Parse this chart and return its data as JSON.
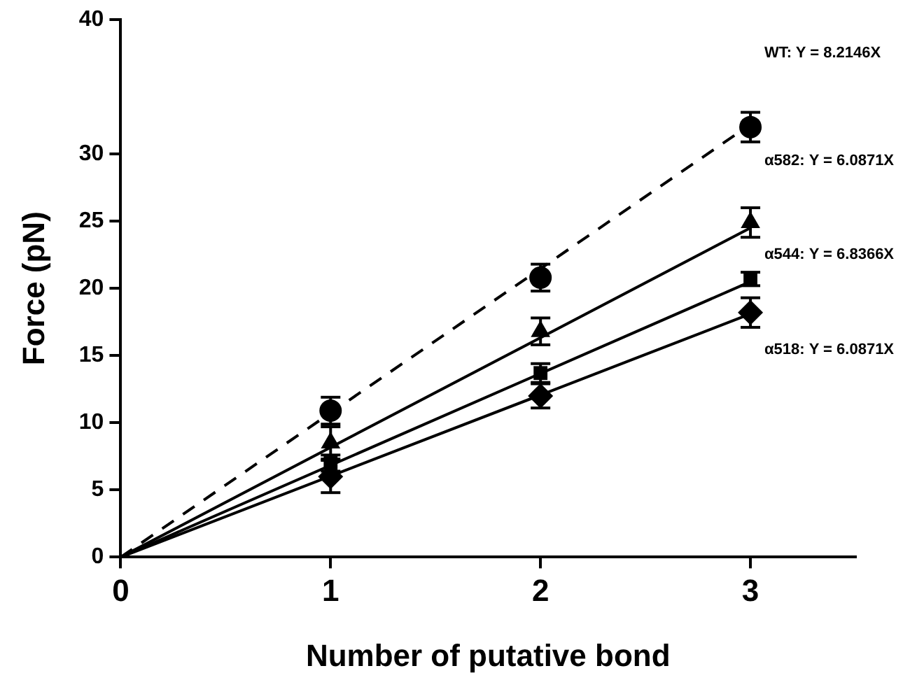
{
  "chart_data": {
    "type": "scatter",
    "xlabel": "Number of putative bond",
    "ylabel": "Force (pN)",
    "xlim": [
      0,
      3.5
    ],
    "xticks": [
      0,
      1,
      2,
      3
    ],
    "ylim": [
      0,
      40
    ],
    "yticks": [
      0,
      5,
      10,
      15,
      20,
      25,
      30,
      40
    ],
    "grid": false,
    "legend": false,
    "series": [
      {
        "type": "line",
        "x": [
          0,
          3
        ],
        "values": [
          0,
          32.2
        ],
        "color": "#000000",
        "line_style": "dashed",
        "marker": "none"
      },
      {
        "type": "line",
        "x": [
          0,
          3
        ],
        "values": [
          0,
          24.5
        ],
        "color": "#000000",
        "line_style": "solid",
        "marker": "none"
      },
      {
        "type": "line",
        "x": [
          0,
          3
        ],
        "values": [
          0,
          20.5
        ],
        "color": "#000000",
        "line_style": "solid",
        "marker": "none"
      },
      {
        "type": "line",
        "x": [
          0,
          3
        ],
        "values": [
          0,
          18.1
        ],
        "color": "#000000",
        "line_style": "solid",
        "marker": "none"
      },
      {
        "type": "scatter",
        "x": [
          1,
          2,
          3
        ],
        "values": [
          10.9,
          20.8,
          32.0
        ],
        "errors": [
          1.0,
          1.0,
          1.1
        ],
        "color": "#000000",
        "marker": "circle"
      },
      {
        "type": "scatter",
        "x": [
          1,
          2,
          3
        ],
        "values": [
          8.5,
          16.8,
          24.9
        ],
        "errors": [
          1.2,
          1.0,
          1.1
        ],
        "color": "#000000",
        "marker": "triangle"
      },
      {
        "type": "scatter",
        "x": [
          1,
          2,
          3
        ],
        "values": [
          7.0,
          13.7,
          20.7
        ],
        "errors": [
          0.6,
          0.7,
          0.5
        ],
        "color": "#000000",
        "marker": "square"
      },
      {
        "type": "scatter",
        "x": [
          1,
          2,
          3
        ],
        "values": [
          6.0,
          12.0,
          18.2
        ],
        "errors": [
          1.2,
          0.9,
          1.1
        ],
        "color": "#000000",
        "marker": "diamond"
      }
    ],
    "annotations": [
      "WT: Y = 8.2146X",
      "α582: Y = 6.0871X",
      "α544: Y = 6.8366X",
      "α518: Y = 6.0871X"
    ]
  }
}
